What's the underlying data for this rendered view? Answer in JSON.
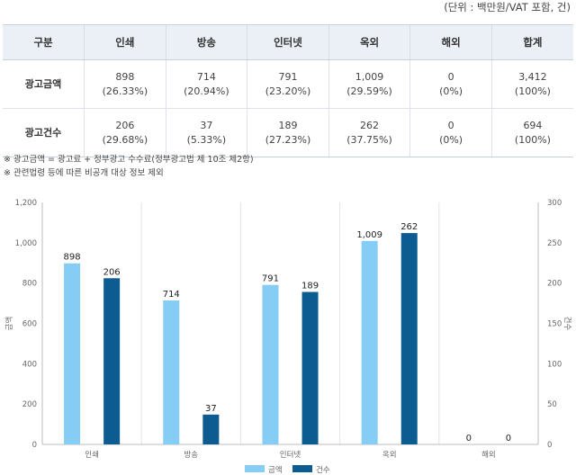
{
  "unit_note": "(단위 : 백만원/VAT 포함, 건)",
  "table": {
    "headers": [
      "구분",
      "인쇄",
      "방송",
      "인터넷",
      "옥외",
      "해외",
      "합계"
    ],
    "rows": [
      {
        "label": "광고금액",
        "cells": [
          [
            "898",
            "(26.33%)"
          ],
          [
            "714",
            "(20.94%)"
          ],
          [
            "791",
            "(23.20%)"
          ],
          [
            "1,009",
            "(29.59%)"
          ],
          [
            "0",
            "(0%)"
          ],
          [
            "3,412",
            "(100%)"
          ]
        ]
      },
      {
        "label": "광고건수",
        "cells": [
          [
            "206",
            "(29.68%)"
          ],
          [
            "37",
            "(5.33%)"
          ],
          [
            "189",
            "(27.23%)"
          ],
          [
            "262",
            "(37.75%)"
          ],
          [
            "0",
            "(0%)"
          ],
          [
            "694",
            "(100%)"
          ]
        ]
      }
    ]
  },
  "notes": [
    "※ 광고금액 = 광고료 + 정부광고 수수료(정부광고법 제 10조 제2항)",
    "※ 관련법령 등에 따른 비공개 대상 정보 제외"
  ],
  "chart_data": {
    "type": "bar",
    "categories": [
      "인쇄",
      "방송",
      "인터넷",
      "옥외",
      "해외"
    ],
    "series": [
      {
        "name": "금액",
        "axis": "left",
        "color": "#86cdf5",
        "values": [
          898,
          714,
          791,
          1009,
          0
        ],
        "labels": [
          "898",
          "714",
          "791",
          "1,009",
          "0"
        ]
      },
      {
        "name": "건수",
        "axis": "right",
        "color": "#0d5c91",
        "values": [
          206,
          37,
          189,
          262,
          0
        ],
        "labels": [
          "206",
          "37",
          "189",
          "262",
          "0"
        ]
      }
    ],
    "ylabel": "금액",
    "y2label": "건수",
    "ylim": [
      0,
      1200
    ],
    "y2lim": [
      0,
      300
    ],
    "yticks": [
      "0",
      "200",
      "400",
      "600",
      "800",
      "1,000",
      "1,200"
    ],
    "y2ticks": [
      "0",
      "50",
      "100",
      "150",
      "200",
      "250",
      "300"
    ],
    "grid": "vertical category separators",
    "legend": "bottom-center"
  }
}
